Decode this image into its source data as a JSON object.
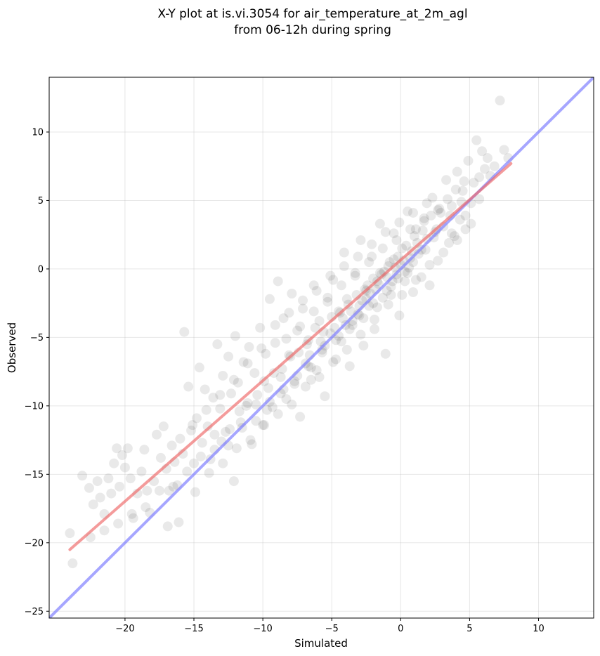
{
  "chart_data": {
    "type": "scatter",
    "title_line1": "X-Y plot at is.vi.3054 for air_temperature_at_2m_agl",
    "title_line2": "from 06-12h during spring",
    "xlabel": "Simulated",
    "ylabel": "Observed",
    "xlim": [
      -25.5,
      14
    ],
    "ylim": [
      -25.5,
      14
    ],
    "xticks": [
      -20,
      -15,
      -10,
      -5,
      0,
      5,
      10
    ],
    "yticks": [
      -25,
      -20,
      -15,
      -10,
      -5,
      0,
      5,
      10
    ],
    "grid": true,
    "legend": "none",
    "point_color": "#000000",
    "regression_line": {
      "color": "#ee6666",
      "x": [
        -24,
        8
      ],
      "y": [
        -20.5,
        7.7
      ]
    },
    "identity_line": {
      "color": "#8080ff",
      "x": [
        -25.5,
        14
      ],
      "y": [
        -25.5,
        14
      ]
    },
    "points": [
      [
        -24,
        -19.3
      ],
      [
        -23.8,
        -21.5
      ],
      [
        -23.1,
        -15.1
      ],
      [
        -22.6,
        -16
      ],
      [
        -22.3,
        -17.2
      ],
      [
        -22,
        -15.5
      ],
      [
        -21.8,
        -16.7
      ],
      [
        -21.5,
        -17.9
      ],
      [
        -21.2,
        -15.3
      ],
      [
        -21,
        -16.4
      ],
      [
        -20.8,
        -14.2
      ],
      [
        -20.6,
        -13.1
      ],
      [
        -20.4,
        -15.9
      ],
      [
        -20.2,
        -13.6
      ],
      [
        -20,
        -14.5
      ],
      [
        -19.8,
        -13.1
      ],
      [
        -19.6,
        -15.3
      ],
      [
        -19.4,
        -18.2
      ],
      [
        -19.1,
        -16.4
      ],
      [
        -18.8,
        -14.8
      ],
      [
        -18.6,
        -13.2
      ],
      [
        -18.4,
        -16.2
      ],
      [
        -18.2,
        -17.8
      ],
      [
        -17.9,
        -15.5
      ],
      [
        -17.7,
        -12.1
      ],
      [
        -17.4,
        -13.8
      ],
      [
        -17.2,
        -11.5
      ],
      [
        -17,
        -14.6
      ],
      [
        -16.8,
        -16.2
      ],
      [
        -16.6,
        -12.9
      ],
      [
        -16.4,
        -14.1
      ],
      [
        -16.2,
        -15.8
      ],
      [
        -16,
        -12.4
      ],
      [
        -15.8,
        -13.5
      ],
      [
        -15.7,
        -4.6
      ],
      [
        -15.4,
        -8.6
      ],
      [
        -15.2,
        -11.8
      ],
      [
        -15,
        -14.2
      ],
      [
        -14.8,
        -10.9
      ],
      [
        -14.6,
        -7.2
      ],
      [
        -14.4,
        -12.7
      ],
      [
        -14.2,
        -8.8
      ],
      [
        -14,
        -11.5
      ],
      [
        -13.8,
        -13.9
      ],
      [
        -13.6,
        -9.4
      ],
      [
        -13.5,
        -12.1
      ],
      [
        -13.3,
        -5.5
      ],
      [
        -13.1,
        -10.2
      ],
      [
        -12.9,
        -7.8
      ],
      [
        -12.7,
        -11.9
      ],
      [
        -12.5,
        -6.4
      ],
      [
        -12.3,
        -9.1
      ],
      [
        -12.1,
        -15.5
      ],
      [
        -12,
        -4.9
      ],
      [
        -11.8,
        -8.3
      ],
      [
        -11.6,
        -11.2
      ],
      [
        -11.4,
        -6.8
      ],
      [
        -11.2,
        -10
      ],
      [
        -11,
        -5.7
      ],
      [
        -10.8,
        -12.8
      ],
      [
        -10.6,
        -7.6
      ],
      [
        -10.4,
        -9.2
      ],
      [
        -10.2,
        -4.3
      ],
      [
        -10,
        -11.4
      ],
      [
        -9.8,
        -6.2
      ],
      [
        -9.6,
        -8.7
      ],
      [
        -9.5,
        -2.2
      ],
      [
        -9.3,
        -10.1
      ],
      [
        -9.1,
        -5.4
      ],
      [
        -8.9,
        -0.9
      ],
      [
        -8.7,
        -7.9
      ],
      [
        -8.5,
        -3.6
      ],
      [
        -8.3,
        -9.5
      ],
      [
        -8.1,
        -6.3
      ],
      [
        -7.9,
        -1.8
      ],
      [
        -7.7,
        -8.4
      ],
      [
        -7.5,
        -4.5
      ],
      [
        -7.3,
        -10.8
      ],
      [
        -7.1,
        -2.9
      ],
      [
        -6.9,
        -6.9
      ],
      [
        -6.7,
        -5.2
      ],
      [
        -6.5,
        -8.1
      ],
      [
        -6.3,
        -1.2
      ],
      [
        -6.1,
        -7.4
      ],
      [
        -5.9,
        -3.8
      ],
      [
        -5.7,
        -5.9
      ],
      [
        -5.5,
        -9.3
      ],
      [
        -5.3,
        -2.4
      ],
      [
        -5.1,
        -4.7
      ],
      [
        -4.9,
        -0.8
      ],
      [
        -4.7,
        -6.6
      ],
      [
        -4.5,
        -3.1
      ],
      [
        -4.3,
        -5.3
      ],
      [
        -4.1,
        1.2
      ],
      [
        -3.9,
        -2.2
      ],
      [
        -3.7,
        -7.1
      ],
      [
        -3.5,
        -4.1
      ],
      [
        -3.3,
        -0.5
      ],
      [
        -3.1,
        -3.3
      ],
      [
        -2.9,
        2.1
      ],
      [
        -2.7,
        -5.6
      ],
      [
        -2.5,
        -1.6
      ],
      [
        -2.3,
        -2.7
      ],
      [
        -2.1,
        0.9
      ],
      [
        -1.9,
        -4.4
      ],
      [
        -1.7,
        -0.9
      ],
      [
        -1.5,
        3.3
      ],
      [
        -1.3,
        -2.1
      ],
      [
        -1.1,
        -6.2
      ],
      [
        -0.9,
        0.2
      ],
      [
        -0.7,
        -1.3
      ],
      [
        -0.5,
        2.6
      ],
      [
        -0.3,
        -0.4
      ],
      [
        -0.1,
        -3.4
      ],
      [
        0.1,
        1.5
      ],
      [
        0.3,
        -0.2
      ],
      [
        0.5,
        4.2
      ],
      [
        0.7,
        0.8
      ],
      [
        0.9,
        -1.7
      ],
      [
        1.1,
        2.9
      ],
      [
        1.3,
        1.1
      ],
      [
        1.5,
        -0.6
      ],
      [
        1.7,
        3.7
      ],
      [
        1.9,
        2.2
      ],
      [
        2.1,
        -1.2
      ],
      [
        2.3,
        5.2
      ],
      [
        2.5,
        2.7
      ],
      [
        2.7,
        0.6
      ],
      [
        2.9,
        4.1
      ],
      [
        3.1,
        3.1
      ],
      [
        3.3,
        6.5
      ],
      [
        3.5,
        1.9
      ],
      [
        3.7,
        4.6
      ],
      [
        3.9,
        2.4
      ],
      [
        4.1,
        7.1
      ],
      [
        4.3,
        3.6
      ],
      [
        4.5,
        5.7
      ],
      [
        4.7,
        2.9
      ],
      [
        4.9,
        7.9
      ],
      [
        5.1,
        4.8
      ],
      [
        5.3,
        6.3
      ],
      [
        5.5,
        9.4
      ],
      [
        5.7,
        5.1
      ],
      [
        6.1,
        7.3
      ],
      [
        6.5,
        6.8
      ],
      [
        7.2,
        12.3
      ],
      [
        7.5,
        8.7
      ],
      [
        7.8,
        8.1
      ],
      [
        -13,
        -12.6
      ],
      [
        -12.4,
        -11.7
      ],
      [
        -11.7,
        -10.4
      ],
      [
        -11.1,
        -9.8
      ],
      [
        -10.5,
        -9.9
      ],
      [
        -9.9,
        -8.2
      ],
      [
        -9.2,
        -7.6
      ],
      [
        -8.6,
        -7.3
      ],
      [
        -8,
        -6.4
      ],
      [
        -7.4,
        -6.1
      ],
      [
        -6.8,
        -5.5
      ],
      [
        -6.2,
        -4.3
      ],
      [
        -5.6,
        -4.6
      ],
      [
        -5,
        -3.5
      ],
      [
        -4.4,
        -3.2
      ],
      [
        -3.8,
        -2.6
      ],
      [
        -3.2,
        -1.9
      ],
      [
        -2.6,
        -1.5
      ],
      [
        -2,
        -0.7
      ],
      [
        -1.4,
        -0.4
      ],
      [
        -0.8,
        0.5
      ],
      [
        -0.2,
        0.9
      ],
      [
        0.4,
        1.7
      ],
      [
        1,
        2.4
      ],
      [
        1.6,
        2.8
      ],
      [
        2.2,
        3.9
      ],
      [
        2.8,
        4.4
      ],
      [
        3.4,
        5.1
      ],
      [
        4,
        5.8
      ],
      [
        4.6,
        6.4
      ],
      [
        -6.6,
        -6.3
      ],
      [
        -5.8,
        -5.3
      ],
      [
        -4.8,
        -4.3
      ],
      [
        -4.2,
        -3.6
      ],
      [
        -3.6,
        -3.1
      ],
      [
        -2.8,
        -2.3
      ],
      [
        -2.2,
        -1.8
      ],
      [
        -1.6,
        -1.1
      ],
      [
        -1,
        -0.6
      ],
      [
        -0.4,
        0.1
      ],
      [
        0.2,
        0.6
      ],
      [
        0.8,
        1.3
      ],
      [
        -3,
        -2.7
      ],
      [
        -2.4,
        -1.2
      ],
      [
        -1.8,
        -1.5
      ],
      [
        -1.2,
        -0.2
      ],
      [
        -0.6,
        -0.9
      ],
      [
        0,
        0.3
      ],
      [
        0.6,
        0.1
      ],
      [
        1.2,
        1.9
      ],
      [
        1.8,
        1.4
      ],
      [
        2.4,
        2.3
      ],
      [
        -0.5,
        0.7
      ],
      [
        -1.5,
        -0.3
      ],
      [
        -2.5,
        -2.2
      ],
      [
        -3.5,
        -3.8
      ],
      [
        -4.5,
        -4.9
      ],
      [
        -5.5,
        -5.6
      ],
      [
        -6.5,
        -7.2
      ],
      [
        -7.5,
        -7.8
      ],
      [
        -8.5,
        -8.8
      ],
      [
        -9.5,
        -9.7
      ],
      [
        -10.5,
        -11.1
      ],
      [
        -11.5,
        -11.6
      ],
      [
        -12.5,
        -12.9
      ],
      [
        -13.5,
        -13.2
      ],
      [
        -14.5,
        -13.7
      ],
      [
        -15.5,
        -14.8
      ],
      [
        -16.5,
        -15.9
      ],
      [
        -17.5,
        -16.2
      ],
      [
        -18.5,
        -17.4
      ],
      [
        -19.5,
        -17.9
      ],
      [
        -20.5,
        -18.6
      ],
      [
        -21.5,
        -19.1
      ],
      [
        -22.5,
        -19.6
      ],
      [
        -16.9,
        -18.8
      ],
      [
        -16.1,
        -18.5
      ],
      [
        -14.9,
        -16.3
      ],
      [
        -13.9,
        -14.9
      ],
      [
        -12.9,
        -14.2
      ],
      [
        -11.9,
        -13.1
      ],
      [
        -10.9,
        -12.5
      ],
      [
        -9.9,
        -11.4
      ],
      [
        -8.9,
        -10.6
      ],
      [
        -7.9,
        -9.9
      ],
      [
        -6.9,
        -8.6
      ],
      [
        -5.9,
        -7.9
      ],
      [
        -4.9,
        -6.8
      ],
      [
        -3.9,
        -5.9
      ],
      [
        -2.9,
        -4.8
      ],
      [
        -1.9,
        -3.7
      ],
      [
        -0.9,
        -2.6
      ],
      [
        0.1,
        -1.9
      ],
      [
        1.1,
        -0.8
      ],
      [
        2.1,
        0.3
      ],
      [
        3.1,
        1.2
      ],
      [
        4.1,
        2.1
      ],
      [
        5.1,
        3.3
      ],
      [
        -9.1,
        -4.1
      ],
      [
        -8.1,
        -3.2
      ],
      [
        -7.1,
        -2.3
      ],
      [
        -6.1,
        -1.6
      ],
      [
        -5.1,
        -0.5
      ],
      [
        -4.1,
        0.2
      ],
      [
        -3.1,
        0.9
      ],
      [
        -2.1,
        1.8
      ],
      [
        -1.1,
        2.7
      ],
      [
        -0.1,
        3.4
      ],
      [
        0.9,
        4.1
      ],
      [
        1.9,
        4.8
      ],
      [
        -11.1,
        -6.9
      ],
      [
        -10.1,
        -5.8
      ],
      [
        -12.1,
        -8.1
      ],
      [
        -13.1,
        -9.2
      ],
      [
        -14.1,
        -10.3
      ],
      [
        -15.1,
        -11.4
      ],
      [
        -1.3,
        1.5
      ],
      [
        -0.3,
        2.1
      ],
      [
        0.7,
        2.9
      ],
      [
        1.7,
        3.5
      ],
      [
        2.7,
        4.3
      ],
      [
        -2.3,
        0.5
      ],
      [
        -3.3,
        -0.3
      ],
      [
        -4.3,
        -1.2
      ],
      [
        -5.3,
        -2.1
      ],
      [
        -6.3,
        -3.1
      ],
      [
        -7.3,
        -4.2
      ],
      [
        -8.3,
        -5.1
      ],
      [
        0.3,
        -0.9
      ],
      [
        0.5,
        -0.3
      ],
      [
        -0.7,
        -1.9
      ],
      [
        -1.7,
        -2.8
      ],
      [
        -2.7,
        -3.6
      ],
      [
        -3.7,
        -4.4
      ],
      [
        -4.7,
        -5.2
      ],
      [
        -5.7,
        -6.1
      ],
      [
        -6.7,
        -7.1
      ],
      [
        -7.7,
        -8.2
      ],
      [
        -8.7,
        -9.1
      ],
      [
        -9.7,
        -10.3
      ],
      [
        3.7,
        2.6
      ],
      [
        4.7,
        3.9
      ],
      [
        5.7,
        6.7
      ],
      [
        6.3,
        8.1
      ],
      [
        6.8,
        7.5
      ],
      [
        5.9,
        8.6
      ],
      [
        4.4,
        4.9
      ],
      [
        3.6,
        3.9
      ],
      [
        2.6,
        2.9
      ],
      [
        1.5,
        1.4
      ],
      [
        0.9,
        0.5
      ],
      [
        -0.2,
        -0.7
      ],
      [
        -1,
        -1.6
      ],
      [
        -2,
        -2.5
      ],
      [
        -3,
        -3.4
      ],
      [
        -4,
        -4.1
      ]
    ]
  }
}
